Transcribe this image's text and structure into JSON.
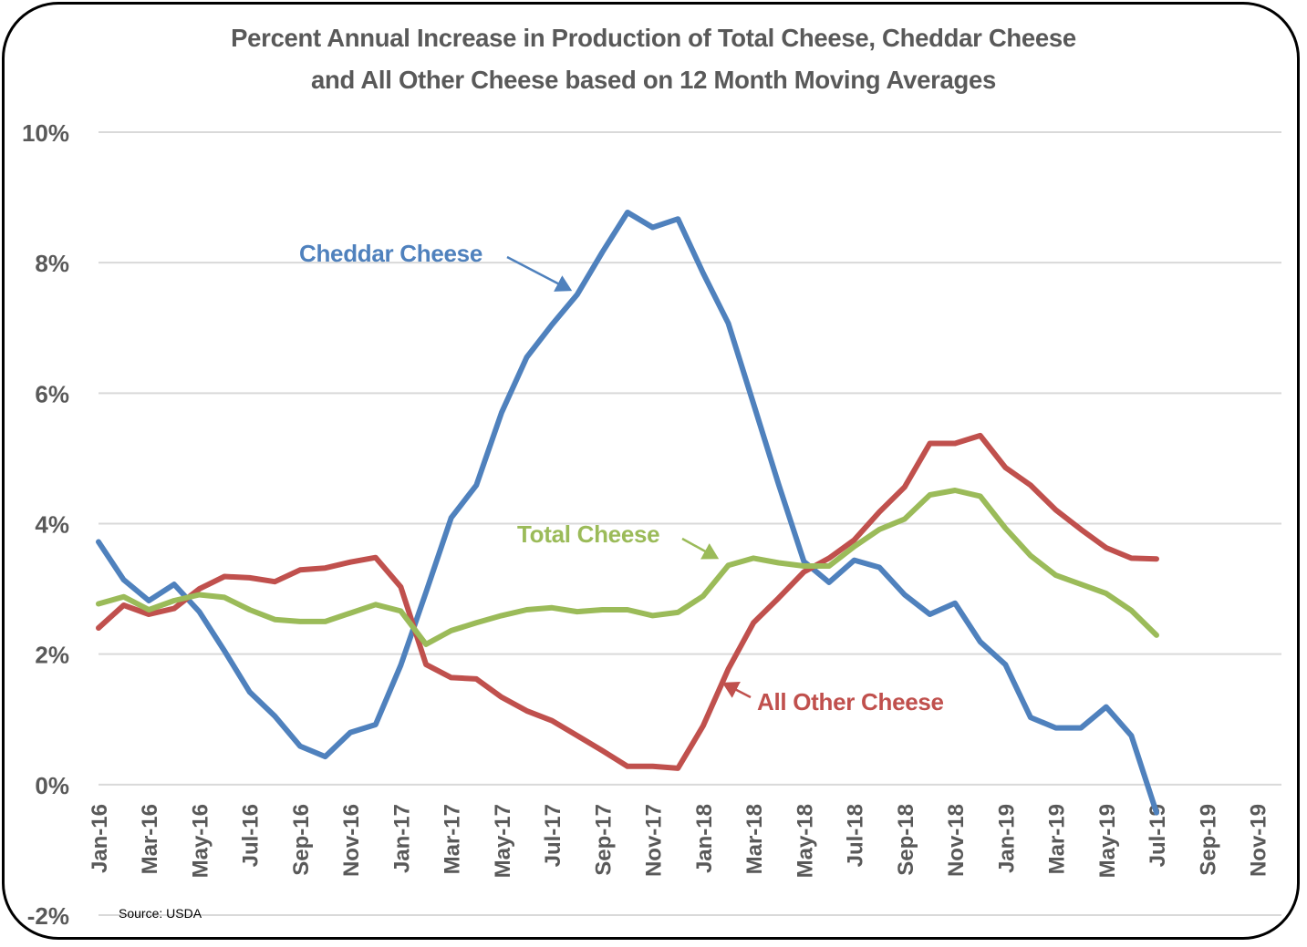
{
  "chart_data": {
    "type": "line",
    "title": [
      "Percent Annual Increase in Production of  Total Cheese, Cheddar Cheese",
      "and All Other Cheese based on 12 Month Moving Averages"
    ],
    "xlabel": "",
    "ylabel": "",
    "ylim": [
      -2,
      10
    ],
    "yticks": [
      -2,
      0,
      2,
      4,
      6,
      8,
      10
    ],
    "ytick_labels": [
      "-2%",
      "0%",
      "2%",
      "4%",
      "6%",
      "8%",
      "10%"
    ],
    "grid": true,
    "legend": "none (inline annotations)",
    "x_tick_labels": [
      "Jan-16",
      "Mar-16",
      "May-16",
      "Jul-16",
      "Sep-16",
      "Nov-16",
      "Jan-17",
      "Mar-17",
      "May-17",
      "Jul-17",
      "Sep-17",
      "Nov-17",
      "Jan-18",
      "Mar-18",
      "May-18",
      "Jul-18",
      "Sep-18",
      "Nov-18",
      "Jan-19",
      "Mar-19",
      "May-19",
      "Jul-19",
      "Sep-19",
      "Nov-19"
    ],
    "x_range": [
      "Jan-16",
      "Nov-19"
    ],
    "x": [
      "Jan-16",
      "Feb-16",
      "Mar-16",
      "Apr-16",
      "May-16",
      "Jun-16",
      "Jul-16",
      "Aug-16",
      "Sep-16",
      "Oct-16",
      "Nov-16",
      "Dec-16",
      "Jan-17",
      "Feb-17",
      "Mar-17",
      "Apr-17",
      "May-17",
      "Jun-17",
      "Jul-17",
      "Aug-17",
      "Sep-17",
      "Oct-17",
      "Nov-17",
      "Dec-17",
      "Jan-18",
      "Feb-18",
      "Mar-18",
      "Apr-18",
      "May-18",
      "Jun-18",
      "Jul-18",
      "Aug-18",
      "Sep-18",
      "Oct-18",
      "Nov-18",
      "Dec-18",
      "Jan-19",
      "Feb-19",
      "Mar-19",
      "Apr-19",
      "May-19",
      "Jun-19",
      "Jul-19"
    ],
    "series": [
      {
        "name": "Cheddar Cheese",
        "color": "#4F81BD",
        "values": [
          3.72,
          3.14,
          2.82,
          3.07,
          2.65,
          2.05,
          1.42,
          1.05,
          0.59,
          0.43,
          0.8,
          0.92,
          1.83,
          2.95,
          4.09,
          4.59,
          5.7,
          6.55,
          7.05,
          7.51,
          8.16,
          8.77,
          8.54,
          8.67,
          7.84,
          7.07,
          5.84,
          4.6,
          3.42,
          3.1,
          3.44,
          3.33,
          2.91,
          2.61,
          2.78,
          2.19,
          1.84,
          1.03,
          0.87,
          0.87,
          1.19,
          0.75,
          -0.43
        ]
      },
      {
        "name": "All Other Cheese",
        "color": "#C0504D",
        "values": [
          2.4,
          2.75,
          2.61,
          2.7,
          3.0,
          3.19,
          3.17,
          3.11,
          3.29,
          3.32,
          3.41,
          3.48,
          3.03,
          1.84,
          1.64,
          1.62,
          1.34,
          1.13,
          0.98,
          0.75,
          0.52,
          0.28,
          0.28,
          0.25,
          0.9,
          1.77,
          2.48,
          2.86,
          3.26,
          3.47,
          3.75,
          4.18,
          4.56,
          5.23,
          5.23,
          5.35,
          4.86,
          4.59,
          4.21,
          3.91,
          3.63,
          3.47,
          3.46
        ]
      },
      {
        "name": "Total Cheese",
        "color": "#9BBB59",
        "values": [
          2.77,
          2.88,
          2.68,
          2.82,
          2.91,
          2.87,
          2.68,
          2.53,
          2.5,
          2.5,
          2.63,
          2.76,
          2.66,
          2.15,
          2.36,
          2.48,
          2.59,
          2.68,
          2.71,
          2.65,
          2.68,
          2.68,
          2.59,
          2.64,
          2.89,
          3.36,
          3.47,
          3.4,
          3.35,
          3.35,
          3.65,
          3.91,
          4.07,
          4.44,
          4.51,
          4.42,
          3.93,
          3.51,
          3.21,
          3.07,
          2.93,
          2.67,
          2.29
        ]
      }
    ],
    "annotations": {
      "cheddar": "Cheddar Cheese",
      "total": "Total Cheese",
      "other": "All Other Cheese"
    },
    "source": "Source: USDA"
  }
}
